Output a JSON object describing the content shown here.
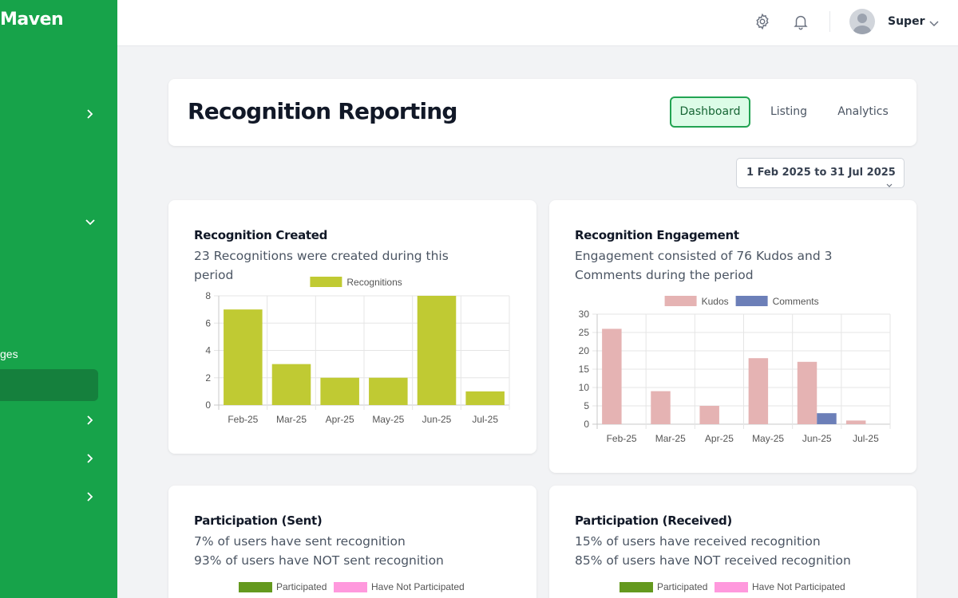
{
  "sidebar": {
    "brand": "Maven",
    "partial_label": "ges"
  },
  "header": {
    "settings_icon": "gear-icon",
    "notifications_icon": "bell-icon",
    "user_name": "Super"
  },
  "page": {
    "title": "Recognition Reporting",
    "tabs": [
      {
        "label": "Dashboard",
        "active": true
      },
      {
        "label": "Listing",
        "active": false
      },
      {
        "label": "Analytics",
        "active": false
      }
    ],
    "date_range": "1 Feb 2025 to 31 Jul 2025"
  },
  "colors": {
    "sidebar": "#17a34a",
    "recognitions": "#c0ca33",
    "kudos": "#e5b3b3",
    "comments": "#6c7fb8",
    "participated": "#64991e",
    "not_participated": "#ff99dd"
  },
  "cards": {
    "created": {
      "title": "Recognition Created",
      "subtitle": "23 Recognitions were created during this period"
    },
    "engagement": {
      "title": "Recognition Engagement",
      "subtitle": "Engagement consisted of 76 Kudos and 3 Comments during the period"
    },
    "sent": {
      "title": "Participation (Sent)",
      "line1": "7% of users have sent recognition",
      "line2": "93% of users have NOT sent recognition",
      "legend": [
        "Participated",
        "Have Not Participated"
      ]
    },
    "received": {
      "title": "Participation (Received)",
      "line1": "15% of users have received recognition",
      "line2": "85% of users have NOT received recognition",
      "legend": [
        "Participated",
        "Have Not Participated"
      ]
    }
  },
  "chart_data": [
    {
      "type": "bar",
      "categories": [
        "Feb-25",
        "Mar-25",
        "Apr-25",
        "May-25",
        "Jun-25",
        "Jul-25"
      ],
      "series": [
        {
          "name": "Recognitions",
          "values": [
            7,
            3,
            2,
            2,
            8,
            1
          ]
        }
      ],
      "ylim": [
        0,
        8
      ],
      "yticks": [
        0,
        2,
        4,
        6,
        8
      ],
      "legend": "top-center",
      "grid": true
    },
    {
      "type": "bar",
      "categories": [
        "Feb-25",
        "Mar-25",
        "Apr-25",
        "May-25",
        "Jun-25",
        "Jul-25"
      ],
      "series": [
        {
          "name": "Kudos",
          "values": [
            26,
            9,
            5,
            18,
            17,
            1
          ]
        },
        {
          "name": "Comments",
          "values": [
            0,
            0,
            0,
            0,
            3,
            0
          ]
        }
      ],
      "ylim": [
        0,
        30
      ],
      "yticks": [
        0,
        5,
        10,
        15,
        20,
        25,
        30
      ],
      "legend": "top-center",
      "grid": true
    }
  ]
}
